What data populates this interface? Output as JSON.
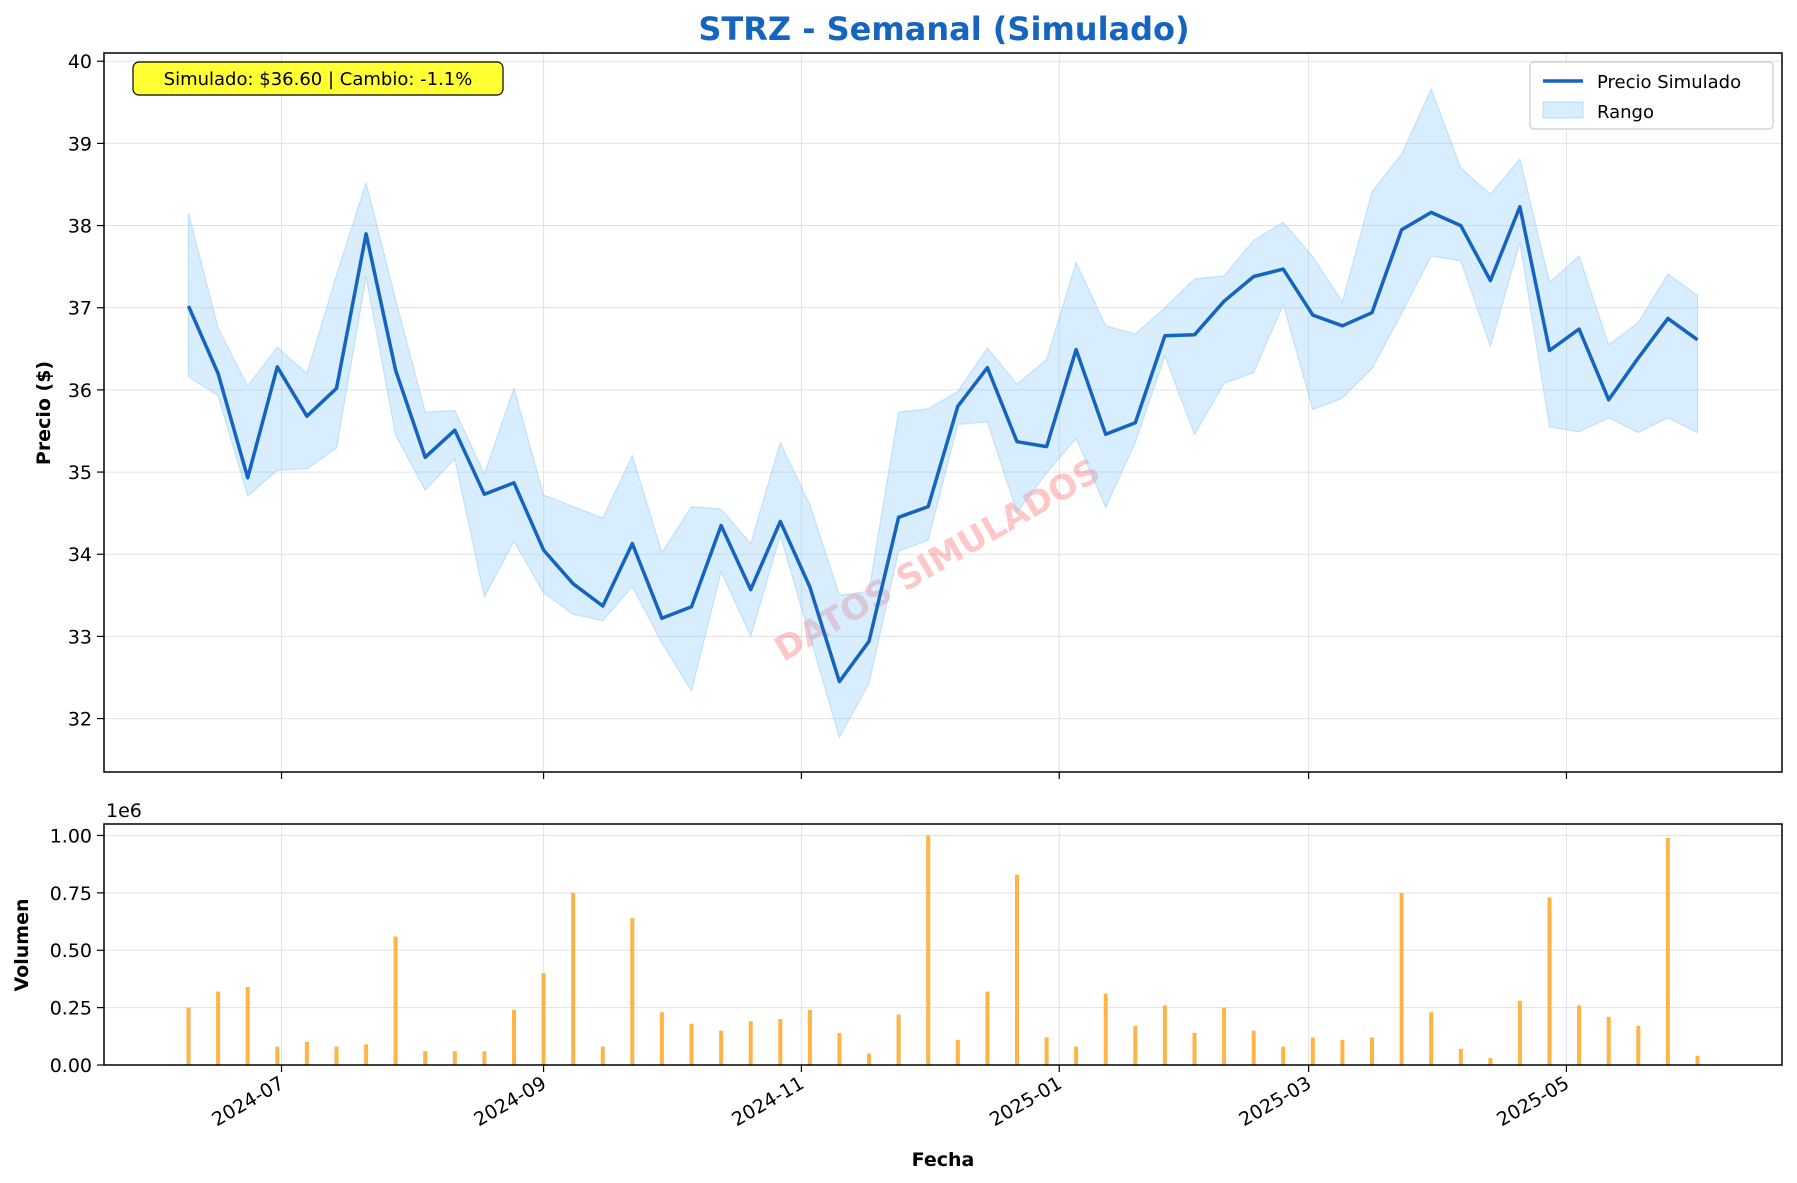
{
  "chart_data": [
    {
      "type": "line",
      "title": "STRZ - Semanal (Simulado)",
      "title_color": "#1565c0",
      "ylabel": "Precio ($)",
      "ylim": [
        31.35,
        40.1
      ],
      "yticks": [
        "32",
        "33",
        "34",
        "35",
        "36",
        "37",
        "38",
        "39",
        "40"
      ],
      "grid": true,
      "legend_position": "top-right",
      "annotation": "Simulado: $36.60 | Cambio: -1.1%",
      "annotation_bg": "#ffff33",
      "watermark": "DATOS SIMULADOS",
      "line_color": "#1565c0",
      "band_color": "#90caf9",
      "series": [
        {
          "name": "Precio Simulado",
          "x": [
            "2024-06-09",
            "2024-06-16",
            "2024-06-23",
            "2024-06-30",
            "2024-07-07",
            "2024-07-14",
            "2024-07-21",
            "2024-07-28",
            "2024-08-04",
            "2024-08-11",
            "2024-08-18",
            "2024-08-25",
            "2024-09-01",
            "2024-09-08",
            "2024-09-15",
            "2024-09-22",
            "2024-09-29",
            "2024-10-06",
            "2024-10-13",
            "2024-10-20",
            "2024-10-27",
            "2024-11-03",
            "2024-11-10",
            "2024-11-17",
            "2024-11-24",
            "2024-12-01",
            "2024-12-08",
            "2024-12-15",
            "2024-12-22",
            "2024-12-29",
            "2025-01-05",
            "2025-01-12",
            "2025-01-19",
            "2025-01-26",
            "2025-02-02",
            "2025-02-09",
            "2025-02-16",
            "2025-02-23",
            "2025-03-02",
            "2025-03-09",
            "2025-03-16",
            "2025-03-23",
            "2025-03-30",
            "2025-04-06",
            "2025-04-13",
            "2025-04-20",
            "2025-04-27",
            "2025-05-04",
            "2025-05-11",
            "2025-05-18",
            "2025-05-25",
            "2025-06-01"
          ],
          "values": [
            37.02,
            36.2,
            34.93,
            36.28,
            35.68,
            36.02,
            37.9,
            36.24,
            35.18,
            35.51,
            34.73,
            34.87,
            34.05,
            33.64,
            33.37,
            34.13,
            33.22,
            33.36,
            34.35,
            33.57,
            34.4,
            33.6,
            32.45,
            32.94,
            34.45,
            34.58,
            35.8,
            36.27,
            35.37,
            35.31,
            36.49,
            35.46,
            35.6,
            36.66,
            36.67,
            37.08,
            37.38,
            37.47,
            36.91,
            36.78,
            36.94,
            37.95,
            38.16,
            38.0,
            37.33,
            38.23,
            36.48,
            36.74,
            35.88,
            36.39,
            36.87,
            36.61
          ]
        },
        {
          "name": "Rango",
          "high": [
            38.15,
            36.75,
            36.05,
            36.52,
            36.2,
            37.4,
            38.52,
            37.1,
            35.73,
            35.75,
            34.98,
            36.02,
            34.72,
            34.58,
            34.44,
            35.2,
            34.02,
            34.58,
            34.55,
            34.13,
            35.36,
            34.6,
            33.5,
            33.55,
            35.73,
            35.77,
            35.98,
            36.51,
            36.07,
            36.37,
            37.55,
            36.78,
            36.68,
            37.0,
            37.35,
            37.39,
            37.82,
            38.04,
            37.62,
            37.07,
            38.41,
            38.87,
            39.66,
            38.7,
            38.38,
            38.81,
            37.31,
            37.63,
            36.55,
            36.82,
            37.41,
            37.15
          ],
          "low": [
            36.16,
            35.93,
            34.71,
            35.02,
            35.04,
            35.29,
            37.38,
            35.45,
            34.78,
            35.16,
            33.48,
            34.16,
            33.53,
            33.27,
            33.19,
            33.61,
            32.92,
            32.34,
            33.79,
            33.0,
            34.23,
            33.0,
            31.77,
            32.43,
            34.04,
            34.17,
            35.58,
            35.61,
            34.51,
            34.99,
            35.41,
            34.57,
            35.36,
            36.41,
            35.46,
            36.08,
            36.21,
            37.04,
            35.76,
            35.9,
            36.26,
            36.93,
            37.63,
            37.57,
            36.53,
            37.8,
            35.55,
            35.49,
            35.66,
            35.48,
            35.66,
            35.48
          ]
        }
      ]
    },
    {
      "type": "bar",
      "xlabel": "Fecha",
      "ylabel": "Volumen",
      "scale_label": "1e6",
      "ylim": [
        0,
        1.05
      ],
      "yticks": [
        "0.00",
        "0.25",
        "0.50",
        "0.75",
        "1.00"
      ],
      "bar_color": "#ffa726",
      "grid": true,
      "x": [
        "2024-06-09",
        "2024-06-16",
        "2024-06-23",
        "2024-06-30",
        "2024-07-07",
        "2024-07-14",
        "2024-07-21",
        "2024-07-28",
        "2024-08-04",
        "2024-08-11",
        "2024-08-18",
        "2024-08-25",
        "2024-09-01",
        "2024-09-08",
        "2024-09-15",
        "2024-09-22",
        "2024-09-29",
        "2024-10-06",
        "2024-10-13",
        "2024-10-20",
        "2024-10-27",
        "2024-11-03",
        "2024-11-10",
        "2024-11-17",
        "2024-11-24",
        "2024-12-01",
        "2024-12-08",
        "2024-12-15",
        "2024-12-22",
        "2024-12-29",
        "2025-01-05",
        "2025-01-12",
        "2025-01-19",
        "2025-01-26",
        "2025-02-02",
        "2025-02-09",
        "2025-02-16",
        "2025-02-23",
        "2025-03-02",
        "2025-03-09",
        "2025-03-16",
        "2025-03-23",
        "2025-03-30",
        "2025-04-06",
        "2025-04-13",
        "2025-04-20",
        "2025-04-27",
        "2025-05-04",
        "2025-05-11",
        "2025-05-18",
        "2025-05-25",
        "2025-06-01"
      ],
      "values": [
        0.25,
        0.32,
        0.34,
        0.08,
        0.1,
        0.08,
        0.09,
        0.56,
        0.06,
        0.06,
        0.06,
        0.24,
        0.4,
        0.75,
        0.08,
        0.64,
        0.23,
        0.18,
        0.15,
        0.19,
        0.2,
        0.24,
        0.14,
        0.05,
        0.22,
        1.0,
        0.11,
        0.32,
        0.83,
        0.12,
        0.08,
        0.31,
        0.17,
        0.26,
        0.14,
        0.25,
        0.15,
        0.08,
        0.12,
        0.11,
        0.12,
        0.75,
        0.23,
        0.07,
        0.03,
        0.28,
        0.73,
        0.26,
        0.21,
        0.17,
        0.99,
        0.04
      ],
      "xticks": [
        {
          "date": "2024-07-01",
          "label": "2024-07"
        },
        {
          "date": "2024-09-01",
          "label": "2024-09"
        },
        {
          "date": "2024-11-01",
          "label": "2024-11"
        },
        {
          "date": "2025-01-01",
          "label": "2025-01"
        },
        {
          "date": "2025-03-01",
          "label": "2025-03"
        },
        {
          "date": "2025-05-01",
          "label": "2025-05"
        }
      ],
      "xrange": [
        "2024-05-20",
        "2025-06-21"
      ]
    }
  ]
}
